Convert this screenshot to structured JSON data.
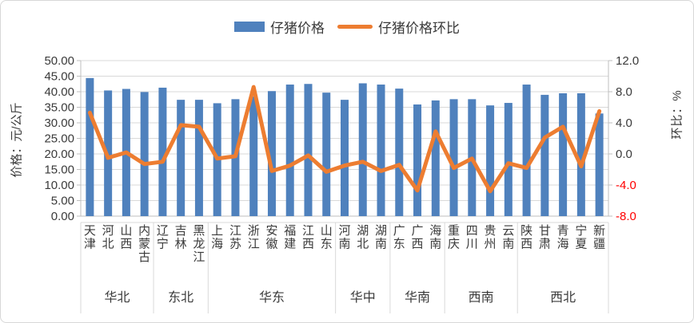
{
  "chart": {
    "legend": [
      {
        "label": "仔猪价格",
        "type": "bar",
        "color": "#4F81BD"
      },
      {
        "label": "仔猪价格环比",
        "type": "line",
        "color": "#ED7D31"
      }
    ],
    "left_axis": {
      "title": "价格：元/公斤",
      "ticks": [
        "50.00",
        "45.00",
        "40.00",
        "35.00",
        "30.00",
        "25.00",
        "20.00",
        "15.00",
        "10.00",
        "5.00",
        "0.00"
      ]
    },
    "right_axis": {
      "title": "环比：%",
      "ticks": [
        "12.0",
        "8.0",
        "4.0",
        "0.0",
        "-4.0",
        "-8.0"
      ],
      "negative_tick_color": "#ff0000"
    },
    "colors": {
      "bar": "#4F81BD",
      "line": "#ED7D31",
      "gridline": "#d9d9d9",
      "axis_line": "#bfbfbf",
      "text": "#3a3a3a"
    }
  },
  "chart_data": {
    "type": "bar+line",
    "title": "",
    "categories": [
      "天津",
      "河北",
      "山西",
      "内蒙古",
      "辽宁",
      "吉林",
      "黑龙江",
      "上海",
      "江苏",
      "浙江",
      "安徽",
      "福建",
      "江西",
      "山东",
      "河南",
      "湖北",
      "湖南",
      "广东",
      "广西",
      "海南",
      "重庆",
      "四川",
      "贵州",
      "云南",
      "陕西",
      "甘肃",
      "青海",
      "宁夏",
      "新疆"
    ],
    "groups": [
      {
        "label": "华北",
        "count": 4
      },
      {
        "label": "东北",
        "count": 3
      },
      {
        "label": "华东",
        "count": 7
      },
      {
        "label": "华中",
        "count": 3
      },
      {
        "label": "华南",
        "count": 3
      },
      {
        "label": "西南",
        "count": 4
      },
      {
        "label": "西北",
        "count": 5
      }
    ],
    "series": [
      {
        "name": "仔猪价格",
        "type": "bar",
        "axis": "left",
        "unit": "元/公斤",
        "color": "#4F81BD",
        "values": [
          44.4,
          40.4,
          40.9,
          39.9,
          41.3,
          37.4,
          37.4,
          36.3,
          37.6,
          38.5,
          40.2,
          42.3,
          42.5,
          39.7,
          37.4,
          42.7,
          42.3,
          41.0,
          35.9,
          37.2,
          37.6,
          37.6,
          35.6,
          36.4,
          42.3,
          39.0,
          39.5,
          39.5,
          33.0
        ]
      },
      {
        "name": "仔猪价格环比",
        "type": "line",
        "axis": "right",
        "unit": "%",
        "color": "#ED7D31",
        "values": [
          5.3,
          -0.5,
          0.2,
          -1.3,
          -1.0,
          3.7,
          3.5,
          -0.6,
          -0.3,
          8.6,
          -2.2,
          -1.5,
          -0.2,
          -2.3,
          -1.5,
          -1.0,
          -2.2,
          -1.4,
          -4.7,
          2.9,
          -1.8,
          -0.6,
          -4.8,
          -1.2,
          -1.8,
          2.1,
          3.5,
          -1.6,
          5.5
        ]
      }
    ],
    "left_ylim": [
      0,
      50
    ],
    "right_ylim": [
      -8,
      12
    ],
    "grid": true,
    "legend_position": "top-center"
  }
}
